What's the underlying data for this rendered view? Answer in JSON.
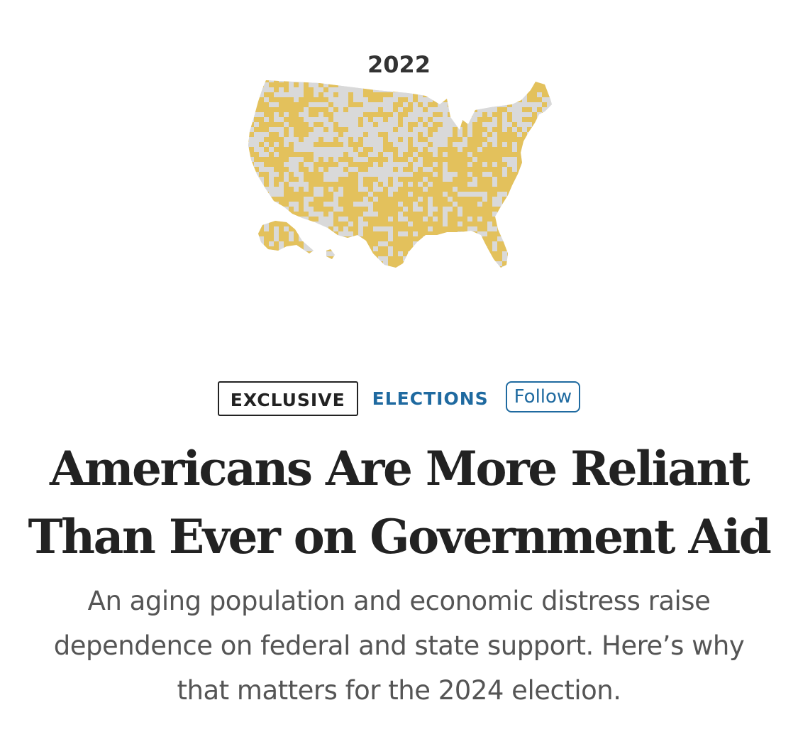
{
  "map": {
    "year_label": "2022",
    "highlight_color": "#e3c15c",
    "base_color": "#d9d9d9"
  },
  "tags": {
    "exclusive_label": "EXCLUSIVE",
    "section_label": "ELECTIONS",
    "follow_label": "Follow",
    "accent_color": "#1f6aa0"
  },
  "article": {
    "headline_line1": "Americans Are More Reliant",
    "headline_line2": "Than Ever on Government Aid",
    "dek_line1": "An aging population and economic distress raise",
    "dek_line2": "dependence on federal and state support. Here’s why",
    "dek_line3": "that matters for the 2024 election."
  }
}
